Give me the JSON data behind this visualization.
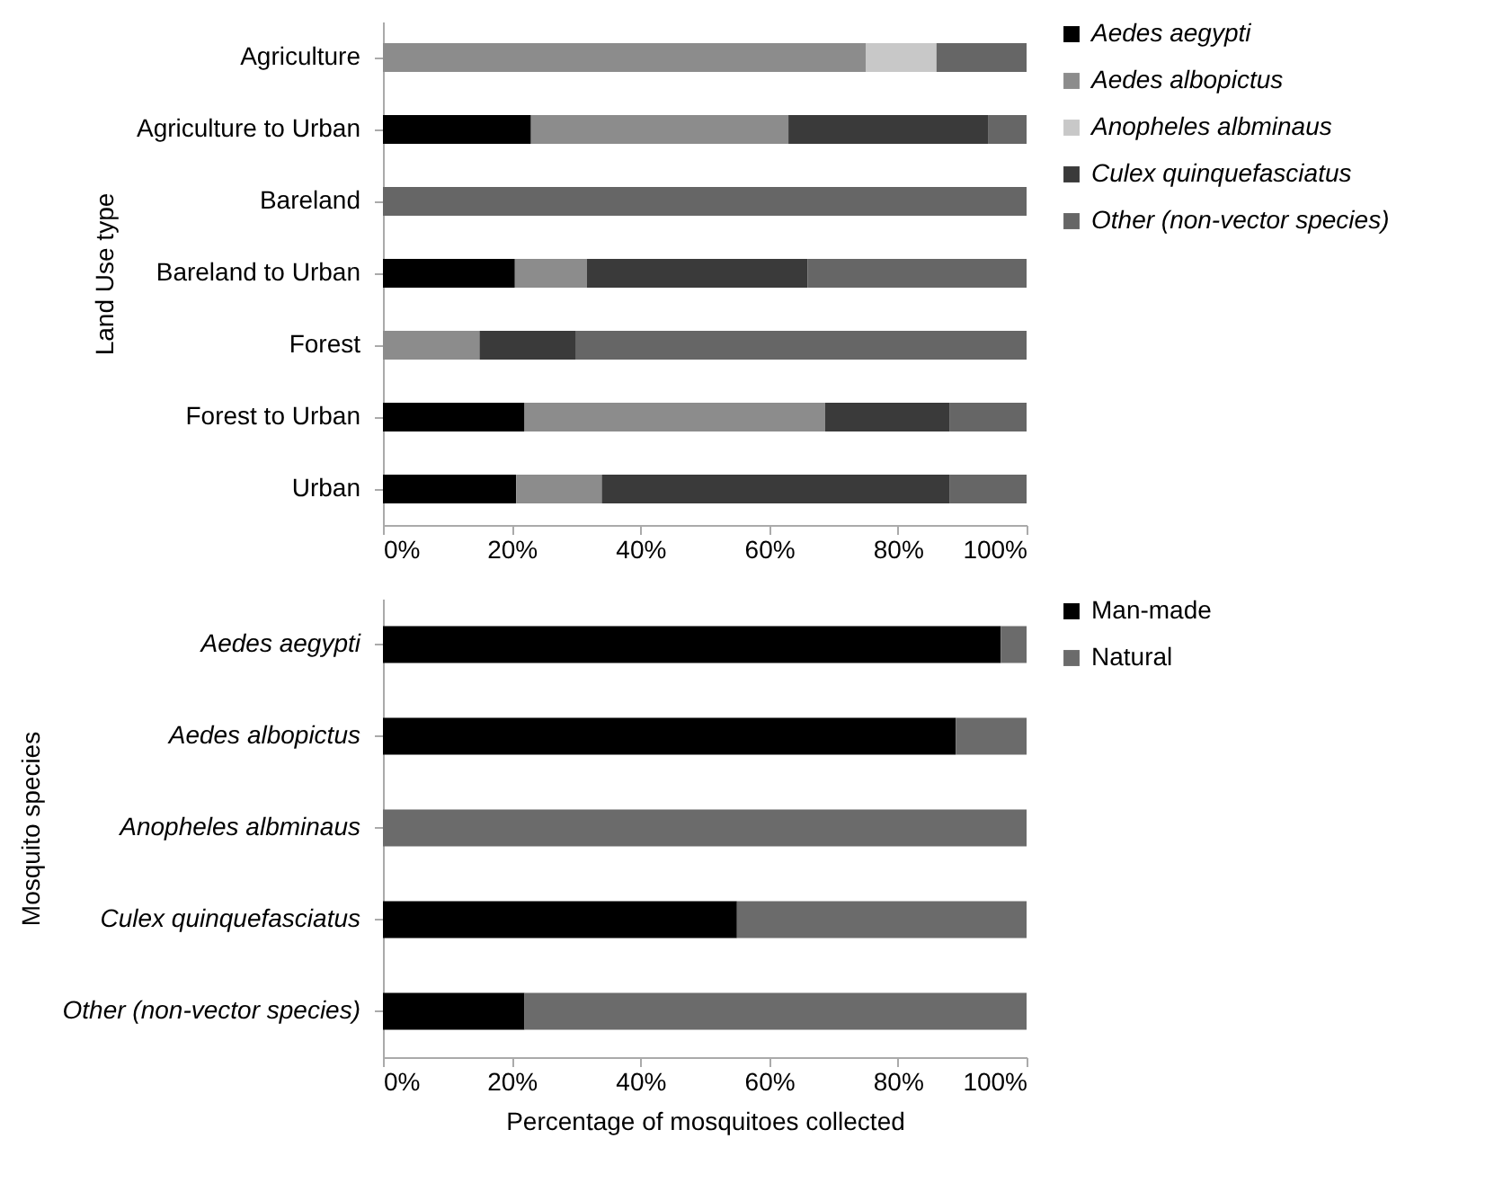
{
  "chart_data": [
    {
      "type": "bar",
      "orientation": "horizontal",
      "stacked": true,
      "ylabel": "Land Use type",
      "categories": [
        "Agriculture",
        "Agriculture to Urban",
        "Bareland",
        "Bareland to Urban",
        "Forest",
        "Forest to Urban",
        "Urban"
      ],
      "series": [
        {
          "name": "Aedes aegypti",
          "color": "#000000",
          "values": [
            0,
            23,
            0,
            20.5,
            0,
            22,
            20.7
          ]
        },
        {
          "name": "Aedes albopictus",
          "color": "#8c8c8c",
          "values": [
            75,
            40,
            0,
            11.2,
            15,
            46.7,
            13.3
          ]
        },
        {
          "name": "Anopheles albminaus",
          "color": "#c8c8c8",
          "values": [
            11,
            0,
            0,
            0,
            0,
            0,
            0
          ]
        },
        {
          "name": "Culex quinquefasciatus",
          "color": "#3a3a3a",
          "values": [
            0,
            31,
            0,
            34.3,
            15,
            19.3,
            54
          ]
        },
        {
          "name": "Other (non-vector species)",
          "color": "#666666",
          "values": [
            14,
            6,
            100,
            34,
            70,
            12,
            12
          ]
        }
      ],
      "xlim": [
        0,
        100
      ],
      "xticks": [
        {
          "value": 0,
          "label": "0%"
        },
        {
          "value": 20,
          "label": "20%"
        },
        {
          "value": 40,
          "label": "40%"
        },
        {
          "value": 60,
          "label": "60%"
        },
        {
          "value": 80,
          "label": "80%"
        },
        {
          "value": 100,
          "label": "100%"
        }
      ],
      "grid": false,
      "legend": "right"
    },
    {
      "type": "bar",
      "orientation": "horizontal",
      "stacked": true,
      "xlabel": "Percentage of mosquitoes collected",
      "ylabel": "Mosquito species",
      "categories": [
        "Aedes aegypti",
        "Aedes albopictus",
        "Anopheles albminaus",
        "Culex quinquefasciatus",
        "Other (non-vector species)"
      ],
      "series": [
        {
          "name": "Man-made",
          "color": "#000000",
          "values": [
            96,
            89,
            0,
            55,
            22
          ]
        },
        {
          "name": "Natural",
          "color": "#6b6b6b",
          "values": [
            4,
            11,
            100,
            45,
            78
          ]
        }
      ],
      "xlim": [
        0,
        100
      ],
      "xticks": [
        {
          "value": 0,
          "label": "0%"
        },
        {
          "value": 20,
          "label": "20%"
        },
        {
          "value": 40,
          "label": "40%"
        },
        {
          "value": 60,
          "label": "60%"
        },
        {
          "value": 80,
          "label": "80%"
        },
        {
          "value": 100,
          "label": "100%"
        }
      ],
      "grid": false,
      "legend": "right"
    }
  ]
}
